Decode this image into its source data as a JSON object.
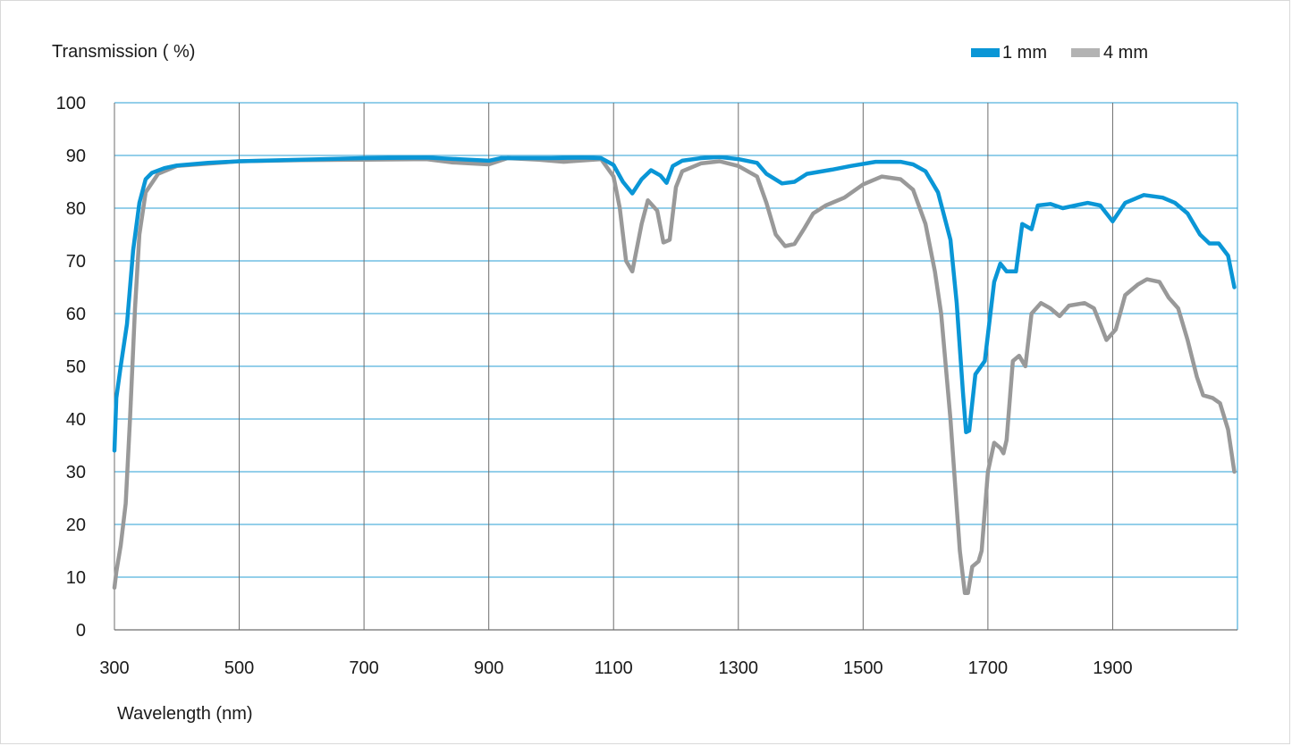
{
  "chart_data": {
    "type": "line",
    "title": "",
    "ylabel": "Transmission ( %)",
    "xlabel": "Wavelength (nm)",
    "xlim": [
      300,
      2100
    ],
    "ylim": [
      0,
      100
    ],
    "x_ticks": [
      300,
      500,
      700,
      900,
      1100,
      1300,
      1500,
      1700,
      1900
    ],
    "x_tick_labels": [
      "300",
      "500",
      "700",
      "900",
      "1100",
      "1300",
      "1500",
      "1700",
      "1900"
    ],
    "y_ticks": [
      0,
      10,
      20,
      30,
      40,
      50,
      60,
      70,
      80,
      90,
      100
    ],
    "y_tick_labels": [
      "0",
      "10",
      "20",
      "30",
      "40",
      "50",
      "60",
      "70",
      "80",
      "90",
      "100"
    ],
    "grid": true,
    "grid_color": "#2a9fd6",
    "legend_position": "top-right",
    "series": [
      {
        "name": "1 mm",
        "color": "#0a96d6",
        "points": [
          [
            300,
            34
          ],
          [
            303,
            44
          ],
          [
            310,
            50
          ],
          [
            320,
            58
          ],
          [
            330,
            72
          ],
          [
            340,
            81
          ],
          [
            350,
            85.5
          ],
          [
            360,
            86.7
          ],
          [
            380,
            87.6
          ],
          [
            400,
            88.1
          ],
          [
            450,
            88.6
          ],
          [
            500,
            88.9
          ],
          [
            600,
            89.2
          ],
          [
            700,
            89.5
          ],
          [
            800,
            89.6
          ],
          [
            850,
            89.3
          ],
          [
            900,
            89.0
          ],
          [
            920,
            89.5
          ],
          [
            1000,
            89.5
          ],
          [
            1050,
            89.6
          ],
          [
            1080,
            89.5
          ],
          [
            1100,
            88.2
          ],
          [
            1115,
            85
          ],
          [
            1130,
            82.8
          ],
          [
            1145,
            85.5
          ],
          [
            1160,
            87.2
          ],
          [
            1175,
            86.2
          ],
          [
            1185,
            84.8
          ],
          [
            1195,
            88
          ],
          [
            1210,
            89
          ],
          [
            1240,
            89.5
          ],
          [
            1270,
            89.7
          ],
          [
            1300,
            89.3
          ],
          [
            1330,
            88.6
          ],
          [
            1345,
            86.5
          ],
          [
            1370,
            84.7
          ],
          [
            1390,
            85
          ],
          [
            1410,
            86.5
          ],
          [
            1450,
            87.3
          ],
          [
            1480,
            88
          ],
          [
            1520,
            88.8
          ],
          [
            1560,
            88.8
          ],
          [
            1580,
            88.3
          ],
          [
            1600,
            87
          ],
          [
            1620,
            83
          ],
          [
            1640,
            74
          ],
          [
            1650,
            62
          ],
          [
            1660,
            45
          ],
          [
            1665,
            37.5
          ],
          [
            1670,
            37.8
          ],
          [
            1680,
            48.5
          ],
          [
            1695,
            51
          ],
          [
            1710,
            66
          ],
          [
            1720,
            69.5
          ],
          [
            1730,
            68
          ],
          [
            1745,
            68
          ],
          [
            1755,
            77
          ],
          [
            1770,
            76
          ],
          [
            1780,
            80.5
          ],
          [
            1800,
            80.8
          ],
          [
            1820,
            80
          ],
          [
            1840,
            80.5
          ],
          [
            1860,
            81
          ],
          [
            1880,
            80.5
          ],
          [
            1900,
            77.5
          ],
          [
            1920,
            81
          ],
          [
            1950,
            82.5
          ],
          [
            1980,
            82
          ],
          [
            2000,
            81
          ],
          [
            2020,
            79
          ],
          [
            2040,
            75
          ],
          [
            2055,
            73.3
          ],
          [
            2070,
            73.3
          ],
          [
            2085,
            71
          ],
          [
            2095,
            65
          ]
        ]
      },
      {
        "name": "4 mm",
        "color": "#999999",
        "points": [
          [
            300,
            8
          ],
          [
            303,
            11
          ],
          [
            310,
            16
          ],
          [
            318,
            24
          ],
          [
            325,
            40
          ],
          [
            333,
            61
          ],
          [
            340,
            75
          ],
          [
            350,
            83
          ],
          [
            370,
            86.5
          ],
          [
            400,
            88
          ],
          [
            500,
            88.9
          ],
          [
            600,
            89.1
          ],
          [
            700,
            89.2
          ],
          [
            800,
            89.3
          ],
          [
            840,
            88.7
          ],
          [
            870,
            88.5
          ],
          [
            900,
            88.3
          ],
          [
            930,
            89.5
          ],
          [
            980,
            89.2
          ],
          [
            1020,
            88.8
          ],
          [
            1080,
            89.3
          ],
          [
            1100,
            86
          ],
          [
            1110,
            80
          ],
          [
            1120,
            70
          ],
          [
            1130,
            68
          ],
          [
            1145,
            77
          ],
          [
            1155,
            81.5
          ],
          [
            1170,
            79.5
          ],
          [
            1180,
            73.5
          ],
          [
            1190,
            74
          ],
          [
            1200,
            84
          ],
          [
            1210,
            87
          ],
          [
            1240,
            88.5
          ],
          [
            1270,
            88.9
          ],
          [
            1300,
            88
          ],
          [
            1330,
            86
          ],
          [
            1345,
            81
          ],
          [
            1360,
            75
          ],
          [
            1375,
            72.8
          ],
          [
            1390,
            73.2
          ],
          [
            1405,
            76
          ],
          [
            1420,
            79
          ],
          [
            1440,
            80.5
          ],
          [
            1470,
            82
          ],
          [
            1500,
            84.5
          ],
          [
            1530,
            86
          ],
          [
            1560,
            85.5
          ],
          [
            1580,
            83.5
          ],
          [
            1600,
            77
          ],
          [
            1615,
            68
          ],
          [
            1625,
            60
          ],
          [
            1640,
            40
          ],
          [
            1655,
            15
          ],
          [
            1663,
            7
          ],
          [
            1668,
            7
          ],
          [
            1675,
            12
          ],
          [
            1685,
            13
          ],
          [
            1690,
            15
          ],
          [
            1700,
            30
          ],
          [
            1710,
            35.5
          ],
          [
            1720,
            34.5
          ],
          [
            1725,
            33.5
          ],
          [
            1730,
            36
          ],
          [
            1740,
            51
          ],
          [
            1750,
            52
          ],
          [
            1760,
            50
          ],
          [
            1770,
            60
          ],
          [
            1785,
            62
          ],
          [
            1800,
            61
          ],
          [
            1815,
            59.5
          ],
          [
            1830,
            61.5
          ],
          [
            1855,
            62
          ],
          [
            1870,
            61
          ],
          [
            1890,
            55
          ],
          [
            1905,
            57
          ],
          [
            1920,
            63.5
          ],
          [
            1940,
            65.5
          ],
          [
            1955,
            66.5
          ],
          [
            1975,
            66
          ],
          [
            1990,
            63
          ],
          [
            2005,
            61
          ],
          [
            2020,
            55
          ],
          [
            2035,
            48
          ],
          [
            2045,
            44.5
          ],
          [
            2060,
            44
          ],
          [
            2072,
            43
          ],
          [
            2085,
            38
          ],
          [
            2095,
            30
          ]
        ]
      }
    ]
  }
}
